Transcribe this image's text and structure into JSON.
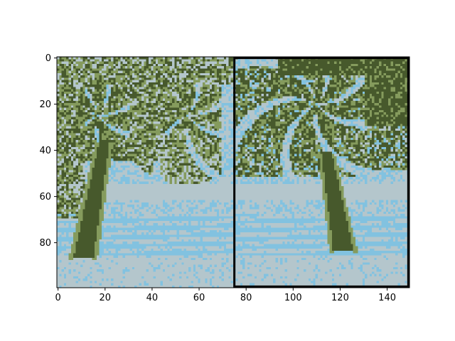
{
  "chart_data": {
    "type": "heatmap",
    "title": "",
    "xlabel": "",
    "ylabel": "",
    "xlim": [
      -0.5,
      149.5
    ],
    "ylim": [
      99.5,
      -0.5
    ],
    "x_ticks": [
      0,
      20,
      40,
      60,
      80,
      100,
      120,
      140
    ],
    "x_tick_labels": [
      "0",
      "20",
      "40",
      "60",
      "80",
      "100",
      "120",
      "140"
    ],
    "y_ticks": [
      0,
      20,
      40,
      60,
      80
    ],
    "y_tick_labels": [
      "0",
      "20",
      "40",
      "60",
      "80"
    ],
    "grid": false,
    "legend": "none",
    "image": {
      "width": 150,
      "height": 100,
      "content": "two pixelated photos of palm trees on a beach placed side by side",
      "palette": [
        "#47592c",
        "#859b5d",
        "#82c2e0",
        "#b4c6cc"
      ],
      "palette_names": [
        "dark olive",
        "light olive",
        "sky blue",
        "pale gray-blue"
      ]
    },
    "annotations": [
      {
        "type": "rectangle",
        "x0": 75,
        "x1": 149,
        "y0": 0,
        "y1": 99,
        "color": "#000000"
      }
    ]
  }
}
